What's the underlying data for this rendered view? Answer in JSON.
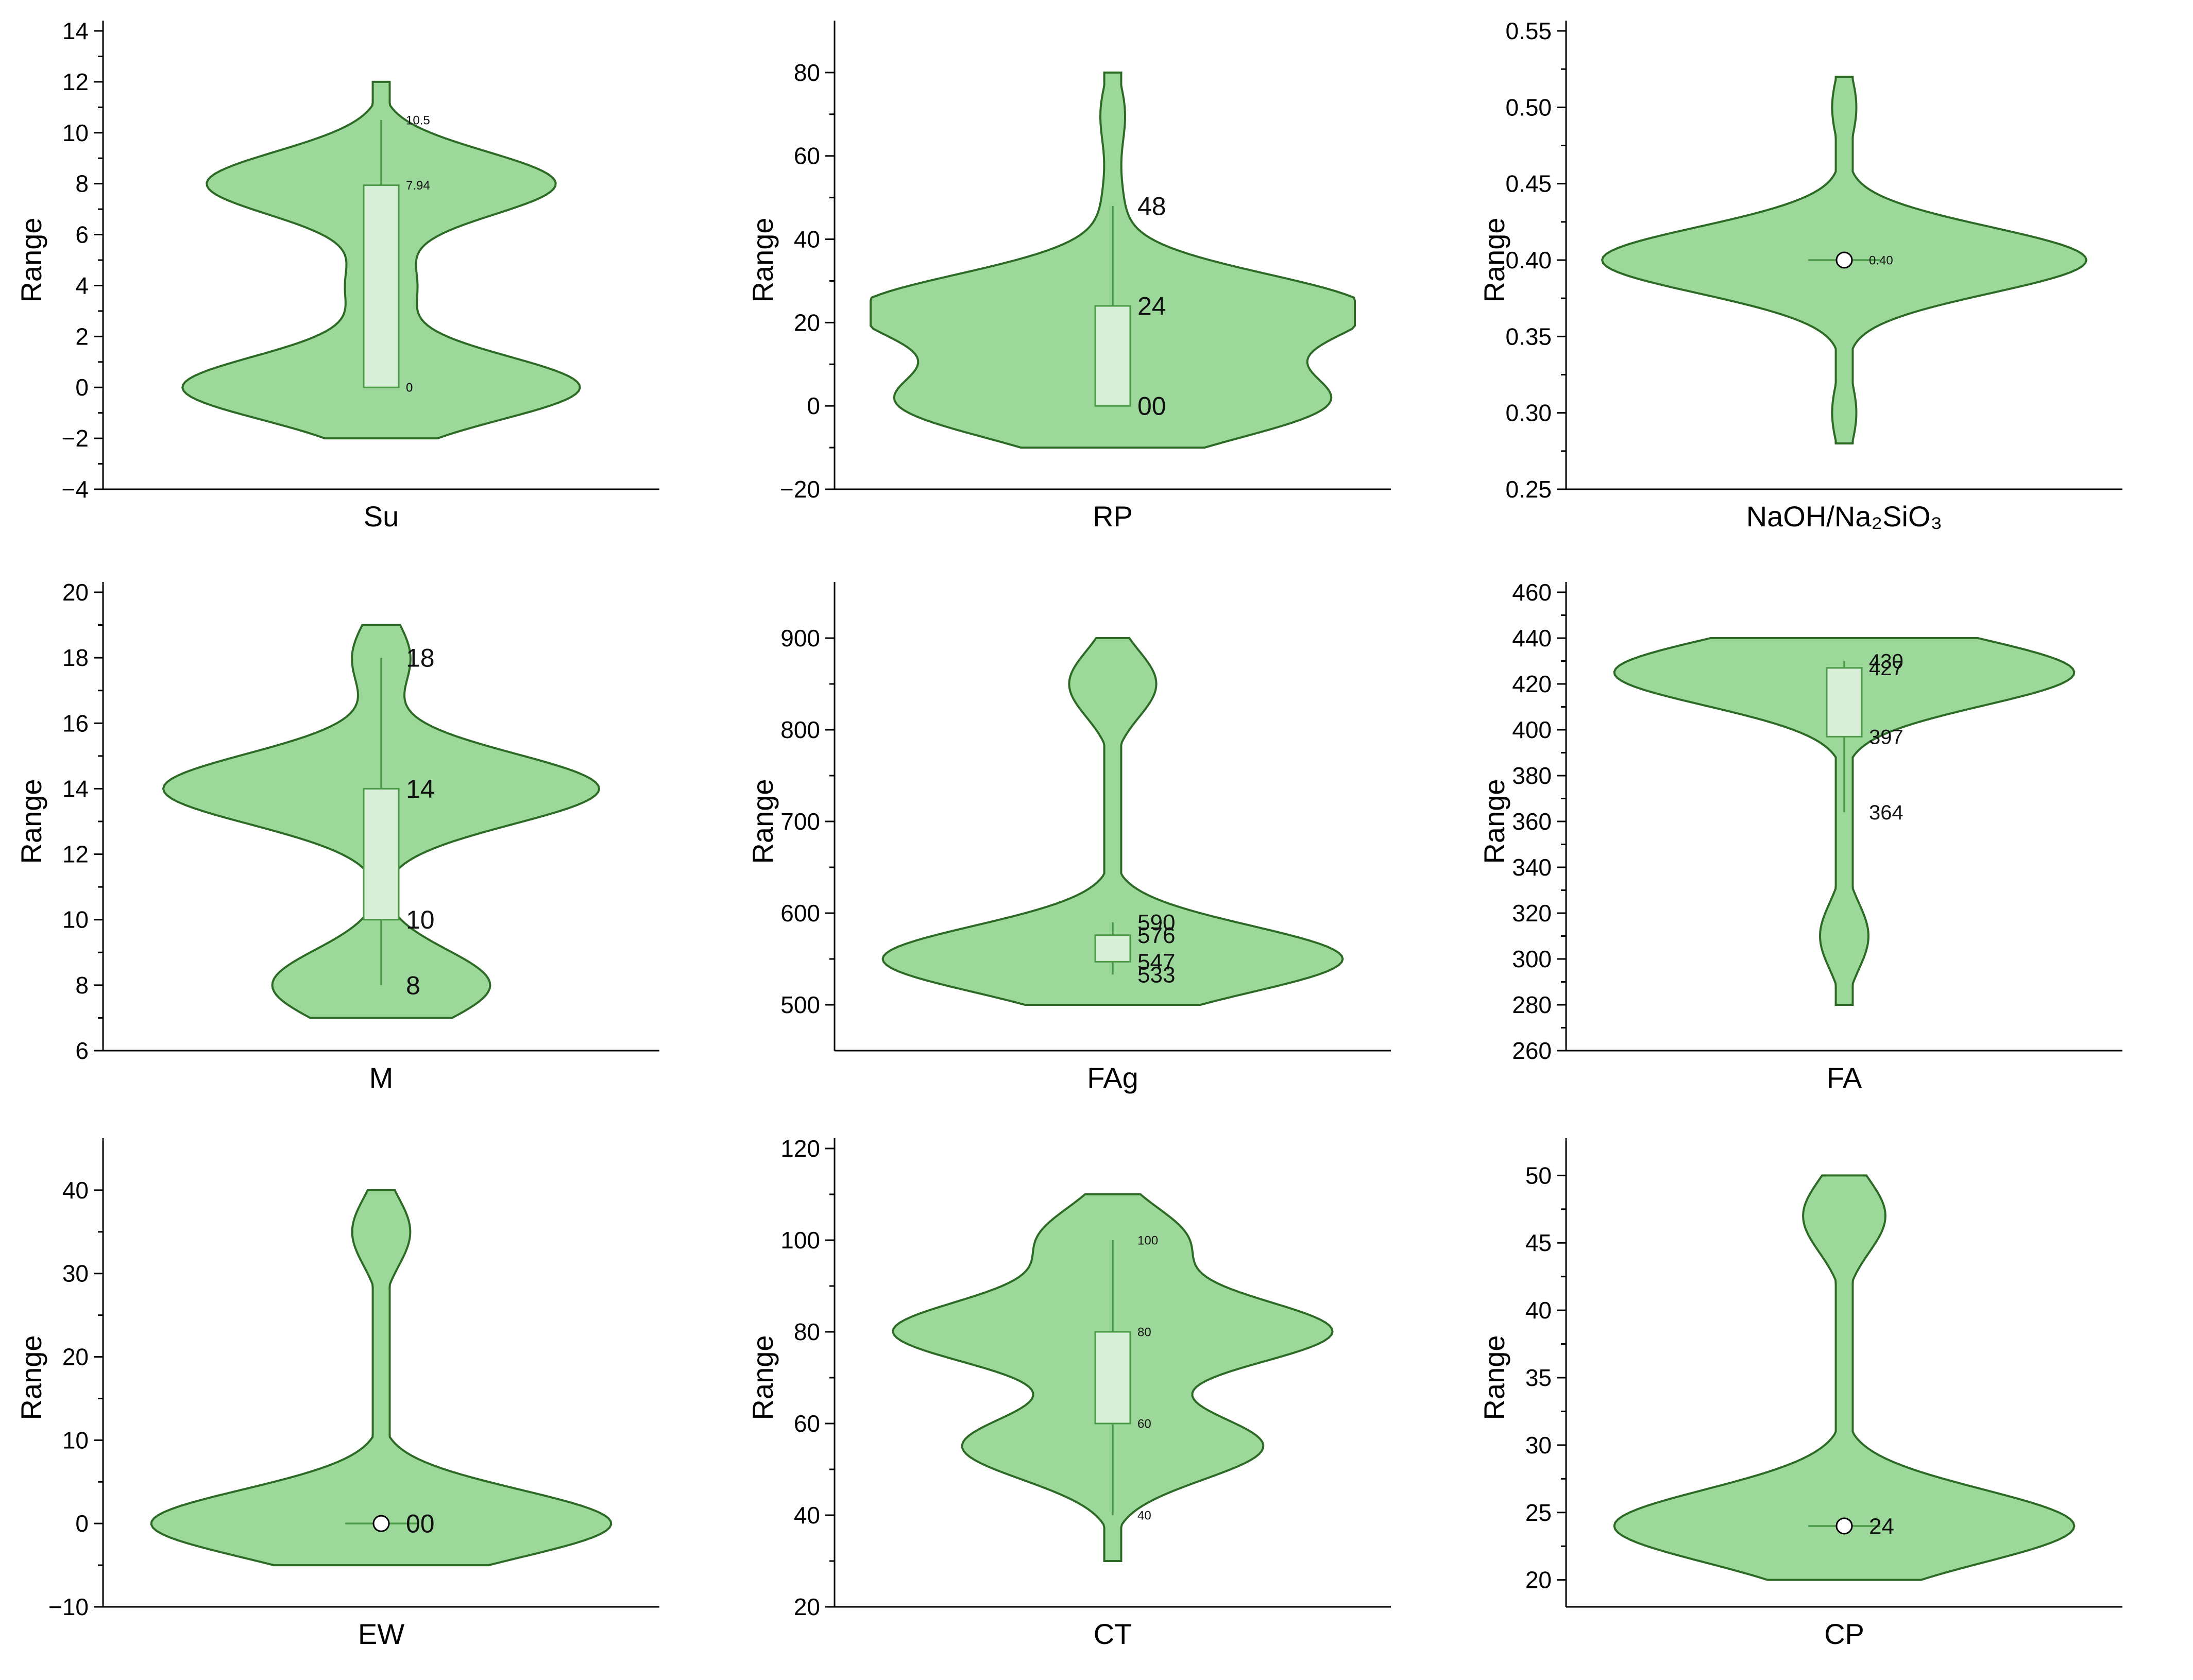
{
  "colors": {
    "violin_fill": "#9dd89b",
    "violin_stroke": "#2c6a26",
    "box_fill": "#d8efd7",
    "whisker": "#4b9a47"
  },
  "chart_data": [
    {
      "type": "violin",
      "xlabel": "Su",
      "ylabel": "Range",
      "ylim": [
        -4,
        14
      ],
      "ticks": [
        -4,
        -2,
        0,
        2,
        4,
        6,
        8,
        10,
        12,
        14
      ],
      "range": [
        -2,
        12
      ],
      "modes": [
        [
          0,
          0.82
        ],
        [
          4,
          0.14
        ],
        [
          8,
          0.72
        ]
      ],
      "box": {
        "q1": 0,
        "q3": 7.94,
        "whisker_low": 0,
        "whisker_high": 10.5
      },
      "labels": [
        {
          "text": "10.5",
          "value": 10.5
        },
        {
          "text": "7.94",
          "value": 7.94
        },
        {
          "text": "0",
          "value": 0
        },
        {
          "text": "0",
          "value": 0
        }
      ]
    },
    {
      "type": "violin",
      "xlabel": "RP",
      "ylabel": "Range",
      "ylim": [
        -20,
        90
      ],
      "ticks": [
        -20,
        0,
        20,
        40,
        60,
        80
      ],
      "range": [
        -10,
        80
      ],
      "modes": [
        [
          0,
          0.8
        ],
        [
          24,
          0.97
        ],
        [
          12,
          0.22
        ],
        [
          48,
          0.04
        ],
        [
          70,
          0.05
        ]
      ],
      "box": {
        "q1": 0,
        "q3": 24,
        "whisker_low": 0,
        "whisker_high": 48
      },
      "labels": [
        {
          "text": "48",
          "value": 48
        },
        {
          "text": "24",
          "value": 24
        },
        {
          "text": "00",
          "value": 0
        }
      ]
    },
    {
      "type": "violin",
      "xlabel": "NaOH/Na₂SiO₃",
      "ylabel": "Range",
      "ylim": [
        0.25,
        0.55
      ],
      "ticks": [
        0.25,
        0.3,
        0.35,
        0.4,
        0.45,
        0.5,
        0.55
      ],
      "range": [
        0.28,
        0.52
      ],
      "modes": [
        [
          0.4,
          1.0
        ],
        [
          0.3,
          0.05
        ],
        [
          0.5,
          0.05
        ]
      ],
      "box": {
        "median": 0.4,
        "whisker_low": 0.4,
        "whisker_high": 0.4
      },
      "labels": [
        {
          "text": "0.40",
          "value": 0.4
        }
      ]
    },
    {
      "type": "violin",
      "xlabel": "M",
      "ylabel": "Range",
      "ylim": [
        6,
        20
      ],
      "ticks": [
        6,
        8,
        10,
        12,
        14,
        16,
        18,
        20
      ],
      "range": [
        7,
        19
      ],
      "modes": [
        [
          14,
          0.9
        ],
        [
          8,
          0.45
        ],
        [
          18,
          0.12
        ]
      ],
      "box": {
        "q1": 10,
        "q3": 14,
        "whisker_low": 8,
        "whisker_high": 18
      },
      "labels": [
        {
          "text": "18",
          "value": 18
        },
        {
          "text": "14",
          "value": 14
        },
        {
          "text": "10",
          "value": 10
        },
        {
          "text": "8",
          "value": 8
        }
      ]
    },
    {
      "type": "violin",
      "xlabel": "FAg",
      "ylabel": "Range",
      "ylim": [
        450,
        950
      ],
      "ticks": [
        500,
        600,
        700,
        800,
        900
      ],
      "range": [
        500,
        900
      ],
      "modes": [
        [
          550,
          0.95
        ],
        [
          850,
          0.18
        ]
      ],
      "box": {
        "q1": 547,
        "q3": 576,
        "whisker_low": 533,
        "whisker_high": 590
      },
      "labels": [
        {
          "text": "590",
          "value": 590
        },
        {
          "text": "576",
          "value": 576
        },
        {
          "text": "547",
          "value": 547
        },
        {
          "text": "533",
          "value": 533
        }
      ]
    },
    {
      "type": "violin",
      "xlabel": "FA",
      "ylabel": "Range",
      "ylim": [
        260,
        460
      ],
      "ticks": [
        260,
        280,
        300,
        320,
        340,
        360,
        380,
        400,
        420,
        440,
        460
      ],
      "range": [
        280,
        440
      ],
      "modes": [
        [
          425,
          0.95
        ],
        [
          310,
          0.1
        ]
      ],
      "box": {
        "q1": 397,
        "q3": 427,
        "whisker_low": 364,
        "whisker_high": 430
      },
      "labels": [
        {
          "text": "430",
          "value": 430
        },
        {
          "text": "427",
          "value": 427
        },
        {
          "text": "397",
          "value": 397
        },
        {
          "text": "364",
          "value": 364
        }
      ]
    },
    {
      "type": "violin",
      "xlabel": "EW",
      "ylabel": "Range",
      "ylim": [
        -10,
        45
      ],
      "ticks": [
        -10,
        0,
        10,
        20,
        30,
        40
      ],
      "range": [
        -5,
        40
      ],
      "modes": [
        [
          0,
          0.95
        ],
        [
          35,
          0.12
        ]
      ],
      "box": {
        "median": 0,
        "whisker_low": 0,
        "whisker_high": 0
      },
      "labels": [
        {
          "text": "00",
          "value": 0
        }
      ]
    },
    {
      "type": "violin",
      "xlabel": "CT",
      "ylabel": "Range",
      "ylim": [
        20,
        120
      ],
      "ticks": [
        20,
        40,
        60,
        80,
        100,
        120
      ],
      "range": [
        30,
        110
      ],
      "modes": [
        [
          80,
          0.9
        ],
        [
          55,
          0.62
        ],
        [
          100,
          0.3
        ]
      ],
      "box": {
        "q1": 60,
        "q3": 80,
        "whisker_low": 40,
        "whisker_high": 100
      },
      "labels": [
        {
          "text": "100",
          "value": 100
        },
        {
          "text": "80",
          "value": 80
        },
        {
          "text": "60",
          "value": 60
        },
        {
          "text": "40",
          "value": 40
        }
      ]
    },
    {
      "type": "violin",
      "xlabel": "CP",
      "ylabel": "Range",
      "ylim": [
        18,
        52
      ],
      "ticks": [
        20,
        25,
        30,
        35,
        40,
        45,
        50
      ],
      "range": [
        20,
        50
      ],
      "modes": [
        [
          24,
          0.95
        ],
        [
          47,
          0.17
        ]
      ],
      "box": {
        "median": 24,
        "whisker_low": 24,
        "whisker_high": 24
      },
      "labels": [
        {
          "text": "24",
          "value": 24
        }
      ]
    }
  ]
}
